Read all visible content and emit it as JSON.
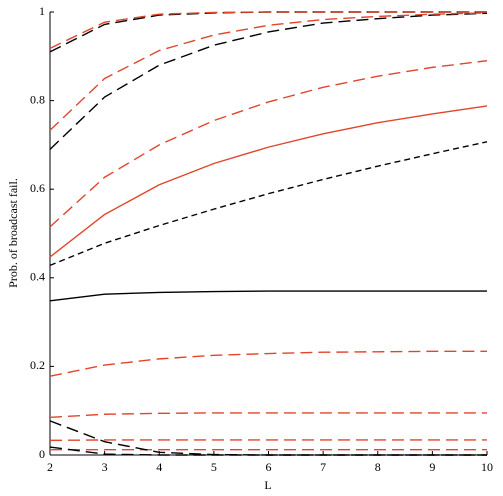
{
  "chart_data": {
    "type": "line",
    "xlabel": "L",
    "ylabel": "Prob. of broadcast fail.",
    "x": [
      2,
      3,
      4,
      5,
      6,
      7,
      8,
      9,
      10
    ],
    "xlim": [
      2,
      10
    ],
    "xticks": [
      2,
      3,
      4,
      5,
      6,
      7,
      8,
      9,
      10
    ],
    "ylim": [
      0,
      1
    ],
    "yticks": [
      0,
      0.2,
      0.4,
      0.6,
      0.8,
      1
    ],
    "grid": false,
    "series": [
      {
        "color": "#000000",
        "dash": "solid",
        "values": [
          0.348,
          0.363,
          0.367,
          0.369,
          0.37,
          0.37,
          0.37,
          0.37,
          0.37
        ]
      },
      {
        "color": "#e0462c",
        "dash": "solid",
        "values": [
          0.447,
          0.543,
          0.61,
          0.658,
          0.695,
          0.725,
          0.75,
          0.77,
          0.788
        ]
      },
      {
        "color": "#000000",
        "dash": "short",
        "values": [
          0.428,
          0.478,
          0.518,
          0.555,
          0.59,
          0.622,
          0.652,
          0.68,
          0.707
        ]
      },
      {
        "color": "#e0462c",
        "dash": "long",
        "values": [
          0.515,
          0.627,
          0.7,
          0.755,
          0.797,
          0.83,
          0.855,
          0.875,
          0.89
        ]
      },
      {
        "color": "#000000",
        "dash": "long",
        "values": [
          0.69,
          0.808,
          0.88,
          0.925,
          0.955,
          0.975,
          0.985,
          0.993,
          0.997
        ]
      },
      {
        "color": "#e0462c",
        "dash": "long",
        "values": [
          0.733,
          0.85,
          0.913,
          0.948,
          0.97,
          0.983,
          0.99,
          0.995,
          0.998
        ]
      },
      {
        "color": "#000000",
        "dash": "long",
        "values": [
          0.91,
          0.972,
          0.993,
          0.998,
          1,
          1,
          1,
          1,
          1
        ]
      },
      {
        "color": "#e0462c",
        "dash": "long",
        "values": [
          0.918,
          0.977,
          0.995,
          0.999,
          1,
          1,
          1,
          1,
          1
        ]
      },
      {
        "color": "#e0462c",
        "dash": "long",
        "values": [
          0.178,
          0.203,
          0.217,
          0.225,
          0.229,
          0.232,
          0.233,
          0.234,
          0.234
        ]
      },
      {
        "color": "#e0462c",
        "dash": "long",
        "values": [
          0.085,
          0.092,
          0.094,
          0.095,
          0.095,
          0.095,
          0.095,
          0.095,
          0.095
        ]
      },
      {
        "color": "#e0462c",
        "dash": "long",
        "values": [
          0.033,
          0.034,
          0.034,
          0.034,
          0.034,
          0.034,
          0.034,
          0.034,
          0.034
        ]
      },
      {
        "color": "#e0462c",
        "dash": "long",
        "values": [
          0.012,
          0.012,
          0.012,
          0.012,
          0.012,
          0.012,
          0.012,
          0.012,
          0.012
        ]
      },
      {
        "color": "#000000",
        "dash": "long",
        "values": [
          0.077,
          0.03,
          0.006,
          0.001,
          0,
          0,
          0,
          0,
          0
        ]
      },
      {
        "color": "#000000",
        "dash": "long",
        "values": [
          0.018,
          0.002,
          0,
          0,
          0,
          0,
          0,
          0,
          0
        ]
      }
    ]
  }
}
